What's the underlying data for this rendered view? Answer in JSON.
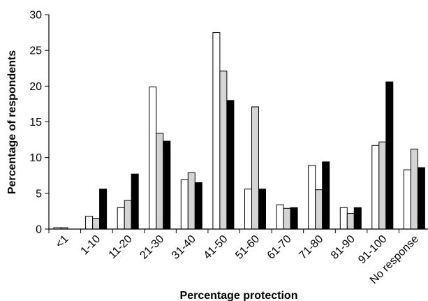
{
  "chart_data": {
    "type": "bar",
    "title": "",
    "xlabel": "Percentage protection",
    "ylabel": "Percentage of respondents",
    "ylim": [
      0,
      30
    ],
    "yticks": [
      0,
      5,
      10,
      15,
      20,
      25,
      30
    ],
    "grid": false,
    "legend": "none",
    "categories": [
      "<1",
      "1-10",
      "11-20",
      "21-30",
      "31-40",
      "41-50",
      "51-60",
      "61-70",
      "71-80",
      "81-90",
      "91-100",
      "No response"
    ],
    "series": [
      {
        "color": "#ffffff",
        "values": [
          0.2,
          1.8,
          3.0,
          19.9,
          6.9,
          27.5,
          5.6,
          3.4,
          8.9,
          3.0,
          11.7,
          8.3
        ]
      },
      {
        "color": "#d4d4d4",
        "values": [
          0.2,
          1.5,
          4.0,
          13.4,
          7.9,
          22.1,
          17.1,
          2.9,
          5.5,
          2.2,
          12.2,
          11.2
        ]
      },
      {
        "color": "#000000",
        "values": [
          0.0,
          5.6,
          7.7,
          12.3,
          6.5,
          18.0,
          5.6,
          3.0,
          9.4,
          3.0,
          20.6,
          8.6
        ]
      }
    ]
  }
}
